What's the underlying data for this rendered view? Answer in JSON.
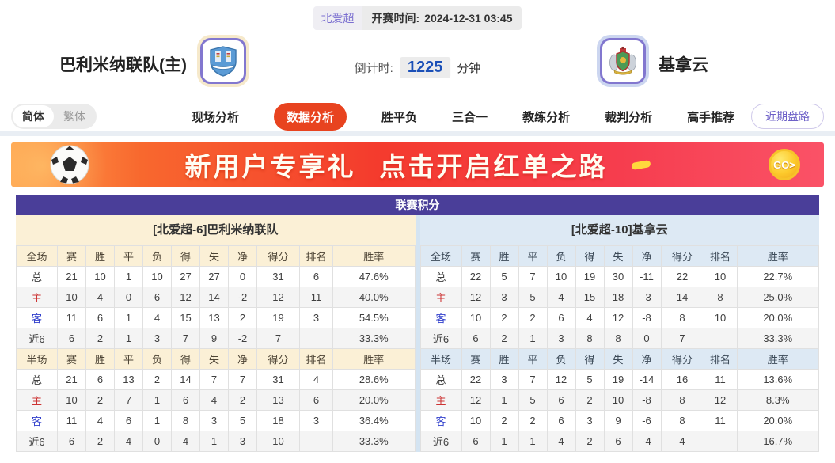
{
  "top": {
    "league": "北爱超",
    "kickoff_label": "开赛时间:",
    "kickoff_time": "2024-12-31 03:45"
  },
  "match": {
    "home_name": "巴利米纳联队(主)",
    "away_name": "基拿云",
    "countdown_label": "倒计时:",
    "countdown_value": "1225",
    "countdown_unit": "分钟"
  },
  "nav": {
    "lang_simplified": "简体",
    "lang_traditional": "繁体",
    "tabs": [
      "现场分析",
      "数据分析",
      "胜平负",
      "三合一",
      "教练分析",
      "裁判分析",
      "高手推荐"
    ],
    "active_tab": "数据分析",
    "recent_button": "近期盘路"
  },
  "banner": {
    "text1": "新用户专享礼",
    "text2": "点击开启红单之路",
    "go_label": "GO>"
  },
  "colors": {
    "accent_orange": "#e8431f",
    "table_header_purple": "#4a3e99",
    "home_panel": "#fbf0d6",
    "away_panel": "#dde9f4",
    "countdown_blue": "#1b50b8"
  },
  "league_table": {
    "title": "联赛积分",
    "columns": [
      "赛",
      "胜",
      "平",
      "负",
      "得",
      "失",
      "净",
      "得分",
      "排名",
      "胜率"
    ],
    "teams": [
      {
        "header": "[北爱超-6]巴利米纳联队",
        "sections": [
          {
            "label": "全场",
            "rows": [
              {
                "label": "总",
                "values": [
                  "21",
                  "10",
                  "1",
                  "10",
                  "27",
                  "27",
                  "0",
                  "31",
                  "6",
                  "47.6%"
                ]
              },
              {
                "label": "主",
                "values": [
                  "10",
                  "4",
                  "0",
                  "6",
                  "12",
                  "14",
                  "-2",
                  "12",
                  "11",
                  "40.0%"
                ]
              },
              {
                "label": "客",
                "values": [
                  "11",
                  "6",
                  "1",
                  "4",
                  "15",
                  "13",
                  "2",
                  "19",
                  "3",
                  "54.5%"
                ]
              },
              {
                "label": "近6",
                "values": [
                  "6",
                  "2",
                  "1",
                  "3",
                  "7",
                  "9",
                  "-2",
                  "7",
                  "",
                  "33.3%"
                ]
              }
            ]
          },
          {
            "label": "半场",
            "rows": [
              {
                "label": "总",
                "values": [
                  "21",
                  "6",
                  "13",
                  "2",
                  "14",
                  "7",
                  "7",
                  "31",
                  "4",
                  "28.6%"
                ]
              },
              {
                "label": "主",
                "values": [
                  "10",
                  "2",
                  "7",
                  "1",
                  "6",
                  "4",
                  "2",
                  "13",
                  "6",
                  "20.0%"
                ]
              },
              {
                "label": "客",
                "values": [
                  "11",
                  "4",
                  "6",
                  "1",
                  "8",
                  "3",
                  "5",
                  "18",
                  "3",
                  "36.4%"
                ]
              },
              {
                "label": "近6",
                "values": [
                  "6",
                  "2",
                  "4",
                  "0",
                  "4",
                  "1",
                  "3",
                  "10",
                  "",
                  "33.3%"
                ]
              }
            ]
          }
        ]
      },
      {
        "header": "[北爱超-10]基拿云",
        "sections": [
          {
            "label": "全场",
            "rows": [
              {
                "label": "总",
                "values": [
                  "22",
                  "5",
                  "7",
                  "10",
                  "19",
                  "30",
                  "-11",
                  "22",
                  "10",
                  "22.7%"
                ]
              },
              {
                "label": "主",
                "values": [
                  "12",
                  "3",
                  "5",
                  "4",
                  "15",
                  "18",
                  "-3",
                  "14",
                  "8",
                  "25.0%"
                ]
              },
              {
                "label": "客",
                "values": [
                  "10",
                  "2",
                  "2",
                  "6",
                  "4",
                  "12",
                  "-8",
                  "8",
                  "10",
                  "20.0%"
                ]
              },
              {
                "label": "近6",
                "values": [
                  "6",
                  "2",
                  "1",
                  "3",
                  "8",
                  "8",
                  "0",
                  "7",
                  "",
                  "33.3%"
                ]
              }
            ]
          },
          {
            "label": "半场",
            "rows": [
              {
                "label": "总",
                "values": [
                  "22",
                  "3",
                  "7",
                  "12",
                  "5",
                  "19",
                  "-14",
                  "16",
                  "11",
                  "13.6%"
                ]
              },
              {
                "label": "主",
                "values": [
                  "12",
                  "1",
                  "5",
                  "6",
                  "2",
                  "10",
                  "-8",
                  "8",
                  "12",
                  "8.3%"
                ]
              },
              {
                "label": "客",
                "values": [
                  "10",
                  "2",
                  "2",
                  "6",
                  "3",
                  "9",
                  "-6",
                  "8",
                  "11",
                  "20.0%"
                ]
              },
              {
                "label": "近6",
                "values": [
                  "6",
                  "1",
                  "1",
                  "4",
                  "2",
                  "6",
                  "-4",
                  "4",
                  "",
                  "16.7%"
                ]
              }
            ]
          }
        ]
      }
    ]
  }
}
